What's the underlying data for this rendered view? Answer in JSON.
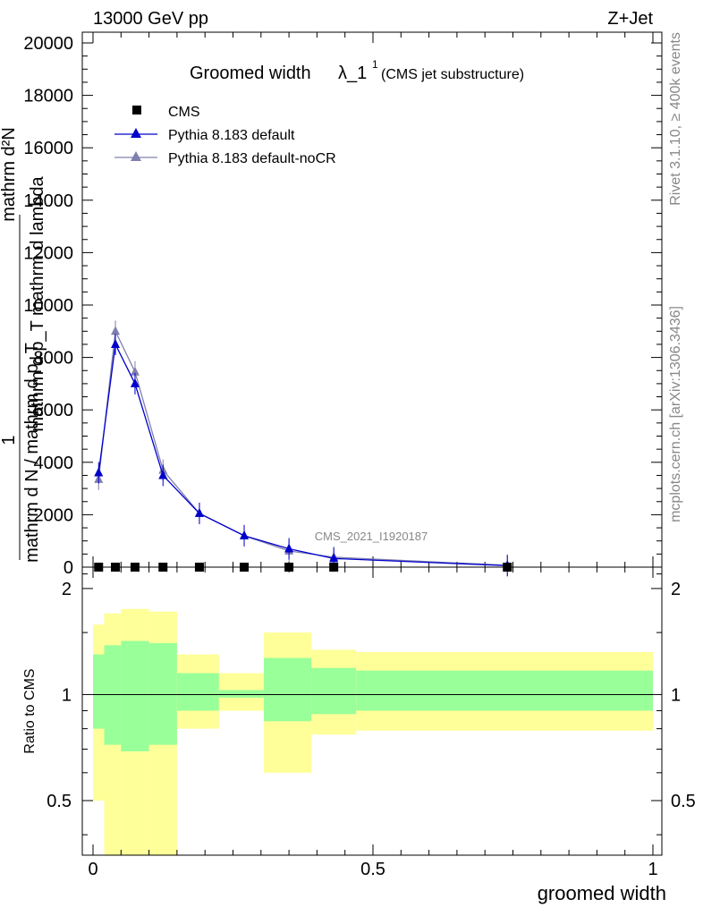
{
  "header": {
    "energy": "13000 GeV pp",
    "process": "Z+Jet"
  },
  "plot_title": {
    "main": "Groomed width",
    "symbol": "λ_1",
    "superscript": "1",
    "subtitle": "(CMS jet substructure)"
  },
  "side_labels": {
    "rivet": "Rivet 3.1.10, ≥ 400k events",
    "mcplots": "mcplots.cern.ch [arXiv:1306.3436]"
  },
  "watermark": "CMS_2021_I1920187",
  "ylabel_main": {
    "line1": "mathrm d²N",
    "line2": "mathrm d p_T mathrm d lambda",
    "line3": "1",
    "line4": "mathrm d N / mathrm d p_T"
  },
  "ylabel_ratio": "Ratio to CMS",
  "xlabel": "groomed width",
  "colors": {
    "default": "#0000cc",
    "noCR": "#8080b0",
    "band_inner": "#99ff99",
    "band_outer": "#ffff99"
  },
  "chart_data": [
    {
      "type": "line",
      "panel": "main",
      "xlim": [
        0,
        1
      ],
      "ylim": [
        0,
        20500
      ],
      "yticks": [
        "0",
        "2000",
        "4000",
        "6000",
        "8000",
        "10000",
        "12000",
        "14000",
        "16000",
        "18000",
        "20000"
      ],
      "series": [
        {
          "name": "CMS",
          "marker": "square",
          "x": [
            0.01,
            0.04,
            0.075,
            0.125,
            0.19,
            0.27,
            0.35,
            0.43,
            0.74
          ],
          "values": [
            0,
            0,
            0,
            0,
            0,
            0,
            0,
            0,
            0
          ]
        },
        {
          "name": "Pythia 8.183 default",
          "marker": "triangle",
          "x": [
            0.01,
            0.04,
            0.075,
            0.125,
            0.19,
            0.27,
            0.35,
            0.43,
            0.74
          ],
          "values": [
            3600,
            8500,
            7000,
            3500,
            2050,
            1200,
            700,
            330,
            55
          ]
        },
        {
          "name": "Pythia 8.183 default-noCR",
          "marker": "triangle",
          "x": [
            0.01,
            0.04,
            0.075,
            0.125,
            0.19,
            0.27,
            0.35,
            0.43,
            0.74
          ],
          "values": [
            3350,
            9000,
            7450,
            3700,
            2050,
            1200,
            620,
            380,
            70
          ]
        }
      ]
    },
    {
      "type": "area",
      "panel": "ratio",
      "ylabel": "Ratio to CMS",
      "xlabel": "groomed width",
      "xlim": [
        0,
        1
      ],
      "ylim": [
        0.35,
        2.3
      ],
      "xticks": [
        "0",
        "0.5",
        "1"
      ],
      "yticks": [
        "0.5",
        "1",
        "2"
      ],
      "bins": [
        {
          "x0": 0.0,
          "x1": 0.02,
          "inner": [
            0.8,
            1.3
          ],
          "outer": [
            0.5,
            1.58
          ]
        },
        {
          "x0": 0.02,
          "x1": 0.05,
          "inner": [
            0.72,
            1.38
          ],
          "outer": [
            0.35,
            1.7
          ]
        },
        {
          "x0": 0.05,
          "x1": 0.1,
          "inner": [
            0.69,
            1.42
          ],
          "outer": [
            0.35,
            1.75
          ]
        },
        {
          "x0": 0.1,
          "x1": 0.15,
          "inner": [
            0.72,
            1.4
          ],
          "outer": [
            0.35,
            1.72
          ]
        },
        {
          "x0": 0.15,
          "x1": 0.225,
          "inner": [
            0.9,
            1.15
          ],
          "outer": [
            0.8,
            1.3
          ]
        },
        {
          "x0": 0.225,
          "x1": 0.305,
          "inner": [
            0.98,
            1.03
          ],
          "outer": [
            0.9,
            1.15
          ]
        },
        {
          "x0": 0.305,
          "x1": 0.39,
          "inner": [
            0.84,
            1.27
          ],
          "outer": [
            0.6,
            1.5
          ]
        },
        {
          "x0": 0.39,
          "x1": 0.47,
          "inner": [
            0.88,
            1.19
          ],
          "outer": [
            0.77,
            1.34
          ]
        },
        {
          "x0": 0.47,
          "x1": 1.0,
          "inner": [
            0.9,
            1.17
          ],
          "outer": [
            0.79,
            1.32
          ]
        }
      ]
    }
  ]
}
